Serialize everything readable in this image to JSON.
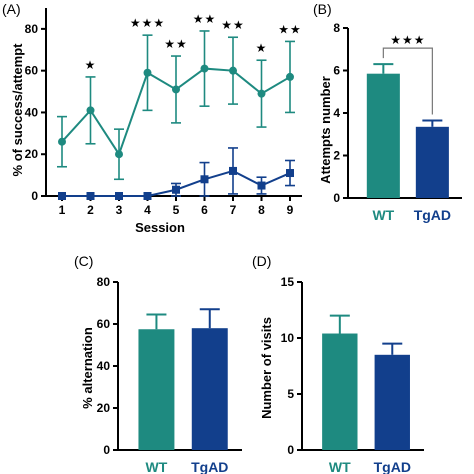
{
  "colors": {
    "wt": "#1e8a80",
    "tgad": "#123f8c",
    "axis": "#000000"
  },
  "chart_data": [
    {
      "panel": "(A)",
      "type": "line",
      "xlabel": "Session",
      "ylabel": "% of success/attempt",
      "x": [
        "1",
        "2",
        "3",
        "4",
        "5",
        "6",
        "7",
        "8",
        "9"
      ],
      "ylim": [
        0,
        90
      ],
      "yticks": [
        "0",
        "20",
        "40",
        "60",
        "80"
      ],
      "series": [
        {
          "color": "#1e8a80",
          "marker": "circle",
          "values": [
            26,
            41,
            20,
            59,
            51,
            61,
            60,
            49,
            57
          ],
          "errors": [
            12,
            16,
            12,
            18,
            16,
            18,
            16,
            16,
            17
          ]
        },
        {
          "color": "#123f8c",
          "marker": "square",
          "values": [
            0,
            0,
            0,
            0,
            3,
            8,
            12,
            5,
            11
          ],
          "errors": [
            0,
            0,
            0,
            0,
            3,
            8,
            11,
            4,
            6
          ]
        }
      ],
      "annotations": [
        "",
        "★",
        "",
        "★★★",
        "★★",
        "★★",
        "★★",
        "★",
        "★★"
      ]
    },
    {
      "panel": "(B)",
      "type": "bar",
      "ylabel": "Attempts number",
      "categories": [
        "WT",
        "TgAD"
      ],
      "values": [
        5.85,
        3.35
      ],
      "errors": [
        0.45,
        0.3
      ],
      "ylim": [
        0,
        8
      ],
      "yticks": [
        "0",
        "2",
        "4",
        "6",
        "8"
      ],
      "significance": "★★★"
    },
    {
      "panel": "(C)",
      "type": "bar",
      "ylabel": "% alternation",
      "categories": [
        "WT",
        "TgAD"
      ],
      "values": [
        57.5,
        58
      ],
      "errors": [
        7,
        9
      ],
      "ylim": [
        0,
        80
      ],
      "yticks": [
        "0",
        "20",
        "40",
        "60",
        "80"
      ]
    },
    {
      "panel": "(D)",
      "type": "bar",
      "ylabel": "Number of visits",
      "categories": [
        "WT",
        "TgAD"
      ],
      "values": [
        10.4,
        8.5
      ],
      "errors": [
        1.6,
        1.0
      ],
      "ylim": [
        0,
        15
      ],
      "yticks": [
        "0",
        "5",
        "10",
        "15"
      ]
    }
  ]
}
